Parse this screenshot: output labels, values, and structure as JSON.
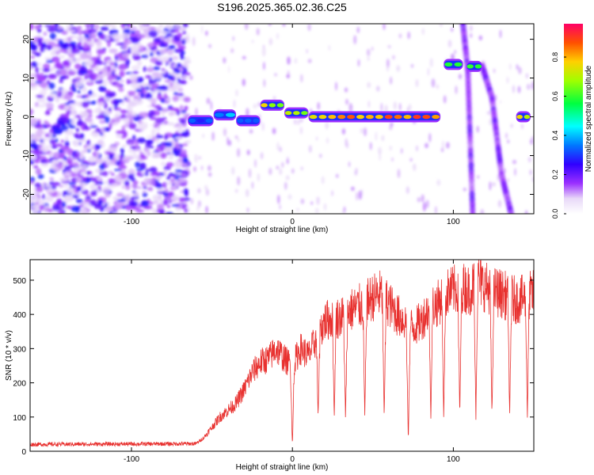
{
  "title": "S196.2025.365.02.36.C25",
  "colors": {
    "snr_line": "#e8312f",
    "axis": "#000000"
  },
  "chart_data": [
    {
      "type": "heatmap",
      "name": "spectrogram",
      "xlabel": "Height of straight line (km)",
      "ylabel": "Frequency (Hz)",
      "xlim": [
        -163,
        150
      ],
      "ylim": [
        -25,
        24
      ],
      "xticks": [
        -100,
        0,
        100
      ],
      "xtick_labels": [
        "-100",
        "0",
        "100"
      ],
      "yticks": [
        -20,
        -10,
        0,
        10,
        20
      ],
      "ytick_labels": [
        "-20",
        "-10",
        "0",
        "10",
        "20"
      ],
      "colorbar": {
        "label": "Normalized spectral amplitude",
        "range": [
          0,
          0.97
        ],
        "ticks": [
          0.0,
          0.2,
          0.4,
          0.6,
          0.8
        ],
        "tick_labels": [
          "0.0",
          "0.2",
          "0.4",
          "0.6",
          "0.8"
        ]
      },
      "noise_region_end_km": -65,
      "carrier_segments": [
        {
          "x_start": -65,
          "x_end": -49,
          "freq": -1.0,
          "amplitude": 0.35
        },
        {
          "x_start": -49,
          "x_end": -35,
          "freq": 0.5,
          "amplitude": 0.45
        },
        {
          "x_start": -35,
          "x_end": -20,
          "freq": -1.0,
          "amplitude": 0.4
        },
        {
          "x_start": -20,
          "x_end": -5,
          "freq": 3.0,
          "amplitude": 0.8
        },
        {
          "x_start": -5,
          "x_end": 10,
          "freq": 1.0,
          "amplitude": 0.75
        },
        {
          "x_start": 10,
          "x_end": 92,
          "freq": 0.0,
          "amplitude": 0.95
        },
        {
          "x_start": 94,
          "x_end": 106,
          "freq": 13.5,
          "amplitude": 0.7
        },
        {
          "x_start": 108,
          "x_end": 118,
          "freq": 13.0,
          "amplitude": 0.65
        },
        {
          "x_start": 139,
          "x_end": 148,
          "freq": 0.0,
          "amplitude": 0.85
        }
      ],
      "drifting_tracks": [
        {
          "x": [
            106,
            109,
            112
          ],
          "freq": [
            24,
            12,
            -25
          ]
        },
        {
          "x": [
            118,
            124,
            130,
            136
          ],
          "freq": [
            13,
            5,
            -15,
            -25
          ]
        }
      ]
    },
    {
      "type": "line",
      "name": "snr",
      "xlabel": "Height of straight line (km)",
      "ylabel": "SNR (10 * v/v)",
      "xlim": [
        -163,
        150
      ],
      "ylim": [
        0,
        560
      ],
      "xticks": [
        -100,
        0,
        100
      ],
      "xtick_labels": [
        "-100",
        "0",
        "100"
      ],
      "yticks": [
        0,
        100,
        200,
        300,
        400,
        500
      ],
      "ytick_labels": [
        "0",
        "100",
        "200",
        "300",
        "400",
        "500"
      ],
      "envelope": {
        "x": [
          -163,
          -60,
          -55,
          -50,
          -45,
          -40,
          -35,
          -30,
          -25,
          -20,
          -15,
          -10,
          -5,
          0,
          5,
          10,
          15,
          20,
          25,
          30,
          35,
          40,
          45,
          50,
          55,
          60,
          65,
          70,
          75,
          80,
          85,
          90,
          95,
          100,
          105,
          110,
          115,
          120,
          125,
          130,
          135,
          140,
          145,
          150
        ],
        "y": [
          20,
          22,
          40,
          70,
          100,
          120,
          140,
          180,
          230,
          260,
          270,
          300,
          270,
          250,
          300,
          280,
          330,
          380,
          390,
          390,
          410,
          420,
          430,
          450,
          460,
          430,
          400,
          380,
          360,
          380,
          420,
          430,
          460,
          470,
          480,
          470,
          500,
          480,
          470,
          460,
          450,
          440,
          450,
          460
        ]
      },
      "dropouts": [
        {
          "x": 0,
          "depth": 10
        },
        {
          "x": 16,
          "depth": 100
        },
        {
          "x": 26,
          "depth": 100
        },
        {
          "x": 33,
          "depth": 90
        },
        {
          "x": 45,
          "depth": 100
        },
        {
          "x": 57,
          "depth": 100
        },
        {
          "x": 72,
          "depth": 20
        },
        {
          "x": 86,
          "depth": 100
        },
        {
          "x": 94,
          "depth": 100
        },
        {
          "x": 104,
          "depth": 100
        },
        {
          "x": 114,
          "depth": 100
        },
        {
          "x": 124,
          "depth": 100
        },
        {
          "x": 135,
          "depth": 100
        },
        {
          "x": 146,
          "depth": 100
        }
      ]
    }
  ]
}
